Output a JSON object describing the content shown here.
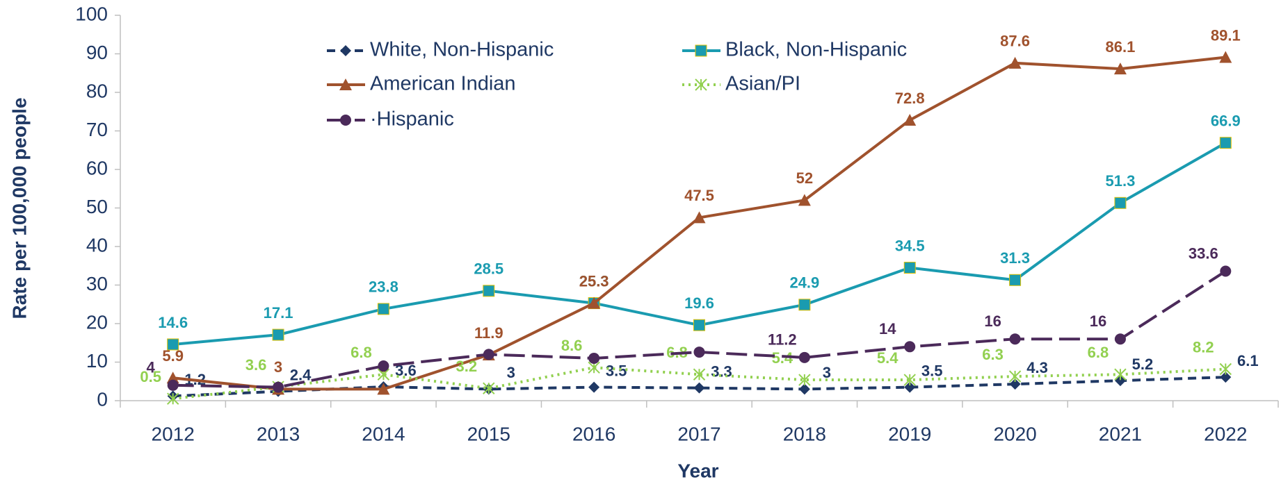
{
  "chart_data": {
    "type": "line",
    "x_label": "Year",
    "y_label": "Rate per 100,000 people",
    "categories": [
      "2012",
      "2013",
      "2014",
      "2015",
      "2016",
      "2017",
      "2018",
      "2019",
      "2020",
      "2021",
      "2022"
    ],
    "ylim": [
      0,
      100
    ],
    "yticks": [
      0,
      10,
      20,
      30,
      40,
      50,
      60,
      70,
      80,
      90,
      100
    ],
    "grid": false,
    "series": [
      {
        "name": "White, Non-Hispanic",
        "color": "#1f3864",
        "dash": "12,8",
        "marker": "diamond",
        "values": [
          1.2,
          2.4,
          3.6,
          3,
          3.5,
          3.3,
          3,
          3.5,
          4.3,
          5.2,
          6.1
        ]
      },
      {
        "name": "Black, Non-Hispanic",
        "color": "#1a9bb0",
        "dash": "none",
        "marker": "square",
        "values": [
          14.6,
          17.1,
          23.8,
          28.5,
          25.3,
          19.6,
          24.9,
          34.5,
          31.3,
          51.3,
          66.9
        ]
      },
      {
        "name": "American Indian",
        "color": "#a0522d",
        "dash": "none",
        "marker": "triangle",
        "values": [
          5.9,
          3,
          3,
          11.9,
          25.3,
          47.5,
          52,
          72.8,
          87.6,
          86.1,
          89.1
        ]
      },
      {
        "name": "Asian/PI",
        "color": "#92d050",
        "dash": "3,6",
        "marker": "star",
        "values": [
          0.5,
          3.6,
          6.8,
          3.2,
          8.6,
          6.8,
          5.4,
          5.4,
          6.3,
          6.8,
          8.2
        ]
      },
      {
        "name": "·Hispanic",
        "color": "#4b2a5a",
        "dash": "30,10",
        "marker": "circle",
        "values": [
          4,
          3.5,
          9,
          12,
          11,
          12.6,
          11.2,
          14,
          16,
          16,
          33.6
        ],
        "value_labels": [
          "4",
          null,
          null,
          null,
          null,
          null,
          "11.2",
          "14",
          "16",
          "16",
          "33.6"
        ]
      }
    ]
  }
}
